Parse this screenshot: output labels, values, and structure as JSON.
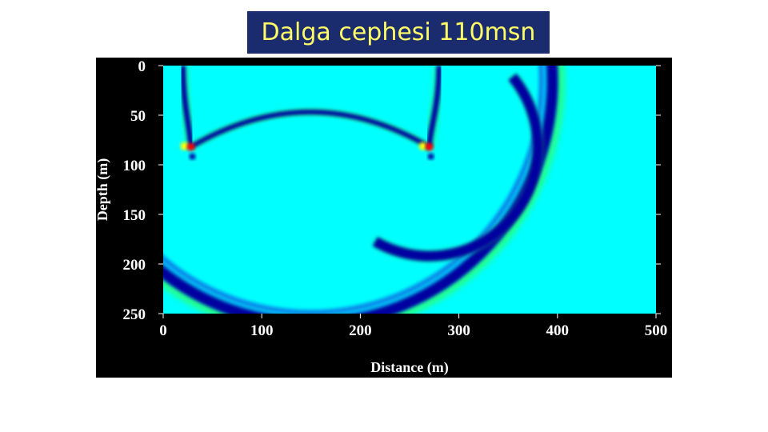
{
  "slide": {
    "title": "Dalga cephesi 110msn"
  },
  "colors": {
    "frame_background": "#000000",
    "field_background": "#00ffff",
    "title_box": "#1a2b6e",
    "title_text": "#ffff66",
    "colormap": [
      "#0000a0",
      "#1050e0",
      "#00ffff",
      "#30ff60",
      "#ffff00",
      "#ff0000"
    ]
  },
  "chart_data": {
    "type": "heatmap",
    "title": "",
    "xlabel": "Distance (m)",
    "ylabel": "Depth (m)",
    "xlim": [
      0,
      500
    ],
    "ylim": [
      250,
      0
    ],
    "x_ticks": [
      "0",
      "100",
      "200",
      "300",
      "400",
      "500"
    ],
    "y_ticks": [
      "0",
      "50",
      "100",
      "150",
      "200",
      "250"
    ],
    "grid": false,
    "wavefronts": [
      {
        "shape": "circle",
        "center": [
          150,
          15
        ],
        "radius": 245,
        "amplitude": "strong-negative"
      },
      {
        "shape": "partial-circle",
        "center": [
          270,
          82
        ],
        "radius": 110,
        "amplitude": "negative"
      },
      {
        "shape": "arch",
        "from": [
          28,
          82
        ],
        "to": [
          270,
          82
        ],
        "apex_depth": 45,
        "amplitude": "negative"
      },
      {
        "shape": "vertical-branch",
        "x": [
          20,
          28
        ],
        "depth": [
          0,
          82
        ],
        "amplitude": "negative"
      },
      {
        "shape": "vertical-branch",
        "x": [
          280,
          270
        ],
        "depth": [
          0,
          82
        ],
        "amplitude": "negative"
      }
    ],
    "hotspots": [
      {
        "x": 28,
        "y": 82,
        "amplitude": "peak"
      },
      {
        "x": 270,
        "y": 82,
        "amplitude": "peak"
      }
    ]
  }
}
